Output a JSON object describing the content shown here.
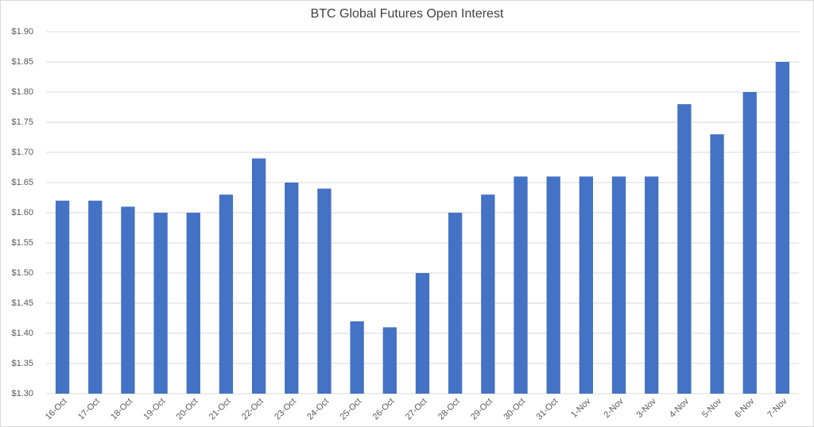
{
  "chart_data": {
    "type": "bar",
    "title": "BTC Global Futures Open Interest",
    "categories": [
      "16-Oct",
      "17-Oct",
      "18-Oct",
      "19-Oct",
      "20-Oct",
      "21-Oct",
      "22-Oct",
      "23-Oct",
      "24-Oct",
      "25-Oct",
      "26-Oct",
      "27-Oct",
      "28-Oct",
      "29-Oct",
      "30-Oct",
      "31-Oct",
      "1-Nov",
      "2-Nov",
      "3-Nov",
      "4-Nov",
      "5-Nov",
      "6-Nov",
      "7-Nov"
    ],
    "values": [
      1.62,
      1.62,
      1.61,
      1.6,
      1.6,
      1.63,
      1.69,
      1.65,
      1.64,
      1.42,
      1.41,
      1.5,
      1.6,
      1.63,
      1.66,
      1.66,
      1.66,
      1.66,
      1.66,
      1.78,
      1.73,
      1.8,
      1.85
    ],
    "color": "#4472c4",
    "ylim": [
      1.3,
      1.9
    ],
    "yticks": [
      {
        "value": 1.3,
        "label": "$1.30"
      },
      {
        "value": 1.35,
        "label": "$1.35"
      },
      {
        "value": 1.4,
        "label": "$1.40"
      },
      {
        "value": 1.45,
        "label": "$1.45"
      },
      {
        "value": 1.5,
        "label": "$1.50"
      },
      {
        "value": 1.55,
        "label": "$1.55"
      },
      {
        "value": 1.6,
        "label": "$1.60"
      },
      {
        "value": 1.65,
        "label": "$1.65"
      },
      {
        "value": 1.7,
        "label": "$1.70"
      },
      {
        "value": 1.75,
        "label": "$1.75"
      },
      {
        "value": 1.8,
        "label": "$1.80"
      },
      {
        "value": 1.85,
        "label": "$1.85"
      },
      {
        "value": 1.9,
        "label": "$1.90"
      }
    ],
    "grid": true
  }
}
